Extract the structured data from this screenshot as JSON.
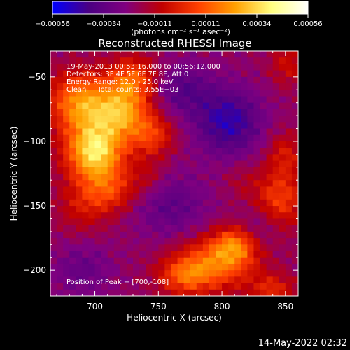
{
  "chart_data": {
    "type": "heatmap",
    "title": "Reconstructed RHESSI Image",
    "xlabel": "Heliocentric X (arcsec)",
    "ylabel": "Heliocentric Y (arcsec)",
    "xlim": [
      665,
      860
    ],
    "ylim": [
      -220,
      -30
    ],
    "xticks": [
      700,
      750,
      800,
      850
    ],
    "yticks": [
      -50,
      -100,
      -150,
      -200
    ],
    "xtick_labels": [
      "700",
      "750",
      "800",
      "850"
    ],
    "ytick_labels": [
      "−50",
      "−100",
      "−150",
      "−200"
    ],
    "colorbar": {
      "range": [
        -0.00056,
        0.00056
      ],
      "tick_labels": [
        "−0.00056",
        "−0.00034",
        "−0.00011",
        "0.00011",
        "0.00034",
        "0.00056"
      ],
      "unit_label": "(photons cm⁻² s⁻¹ asec⁻²)",
      "colors": [
        "#0000ff",
        "#4b0082",
        "#800080",
        "#c00000",
        "#ff4000",
        "#ffa000",
        "#ffff80",
        "#ffffff"
      ]
    },
    "annotations": [
      "19-May-2013 00:53:16.000 to 00:56:12.000",
      "Detectors: 3F 4F 5F 6F 7F 8F, Att 0",
      "Energy Range: 12.0 - 25.0 keV",
      "Clean     Total counts: 3.55E+03"
    ],
    "peak_label": "Position of Peak = [700,-108]",
    "peak": [
      700,
      -108
    ],
    "blobs": [
      {
        "x": 700,
        "y": -108,
        "amp": 0.00056,
        "sx": 16,
        "sy": 16
      },
      {
        "x": 690,
        "y": -70,
        "amp": 0.00042,
        "sx": 18,
        "sy": 16
      },
      {
        "x": 722,
        "y": -78,
        "amp": 0.00036,
        "sx": 14,
        "sy": 14
      },
      {
        "x": 730,
        "y": -52,
        "amp": 0.0003,
        "sx": 13,
        "sy": 12
      },
      {
        "x": 745,
        "y": -95,
        "amp": 0.00024,
        "sx": 12,
        "sy": 12
      },
      {
        "x": 712,
        "y": -138,
        "amp": 0.00022,
        "sx": 14,
        "sy": 12
      },
      {
        "x": 690,
        "y": -150,
        "amp": 0.00014,
        "sx": 14,
        "sy": 14
      },
      {
        "x": 742,
        "y": -128,
        "amp": 0.0001,
        "sx": 10,
        "sy": 10
      },
      {
        "x": 795,
        "y": -195,
        "amp": 0.00034,
        "sx": 22,
        "sy": 14
      },
      {
        "x": 810,
        "y": -180,
        "amp": 0.00028,
        "sx": 12,
        "sy": 10
      },
      {
        "x": 770,
        "y": -205,
        "amp": 0.00024,
        "sx": 14,
        "sy": 10
      },
      {
        "x": 840,
        "y": -215,
        "amp": 0.0002,
        "sx": 12,
        "sy": 8
      },
      {
        "x": 845,
        "y": -145,
        "amp": 0.00026,
        "sx": 14,
        "sy": 16
      },
      {
        "x": 850,
        "y": -110,
        "amp": 0.00016,
        "sx": 10,
        "sy": 12
      },
      {
        "x": 852,
        "y": -40,
        "amp": 0.00014,
        "sx": 10,
        "sy": 12
      },
      {
        "x": 815,
        "y": -130,
        "amp": 6e-05,
        "sx": 10,
        "sy": 10
      },
      {
        "x": 805,
        "y": -85,
        "amp": -0.00026,
        "sx": 18,
        "sy": 18
      },
      {
        "x": 770,
        "y": -60,
        "amp": -0.00016,
        "sx": 16,
        "sy": 14
      },
      {
        "x": 760,
        "y": -150,
        "amp": -0.00014,
        "sx": 20,
        "sy": 18
      },
      {
        "x": 690,
        "y": -200,
        "amp": -0.00012,
        "sx": 16,
        "sy": 14
      },
      {
        "x": 830,
        "y": -165,
        "amp": -0.0001,
        "sx": 12,
        "sy": 12
      }
    ]
  },
  "footer": {
    "timestamp": "14-May-2022 02:32"
  }
}
